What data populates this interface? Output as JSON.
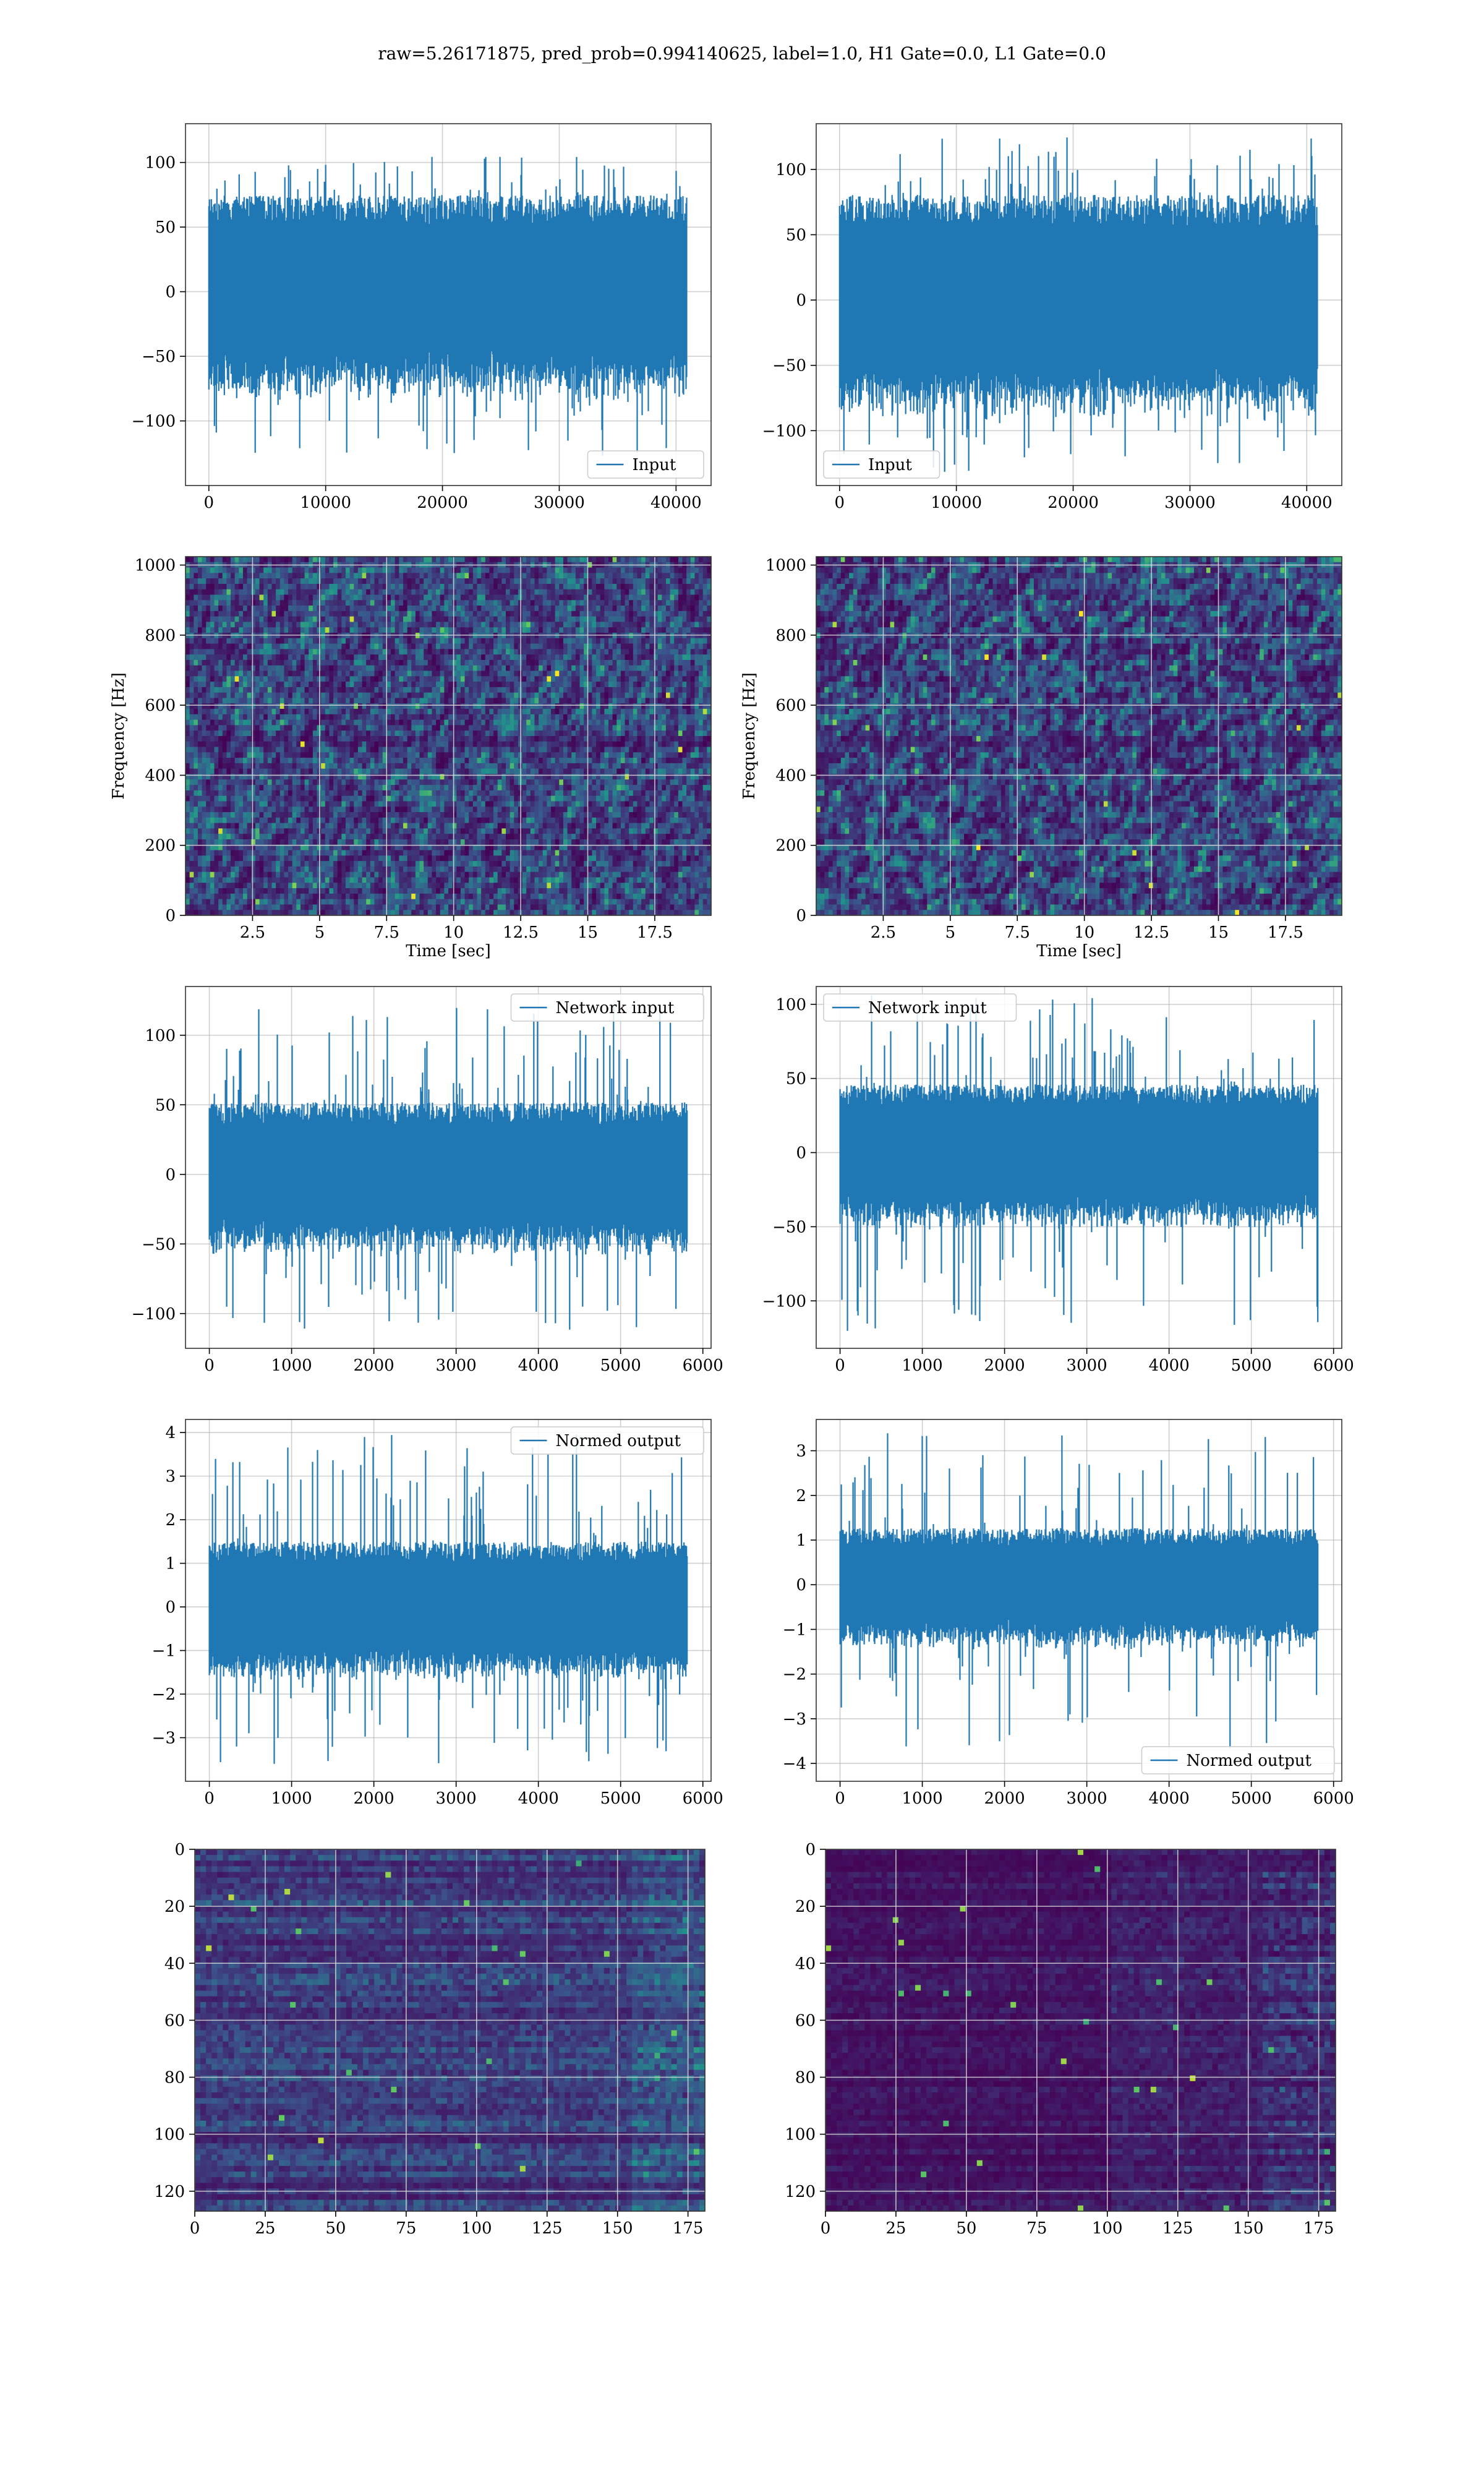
{
  "figure": {
    "title": "raw=5.26171875, pred_prob=0.994140625, label=1.0, H1 Gate=0.0, L1 Gate=0.0"
  },
  "colors": {
    "series": "#1f77b4",
    "grid": "#b0b0b0",
    "heat_low": "#440154",
    "heat_mid1": "#3b528b",
    "heat_mid2": "#21918c",
    "heat_high": "#5ec962",
    "heat_peak": "#fde725"
  },
  "chart_data": [
    {
      "id": "h1_input",
      "type": "line",
      "legend_loc": "lower right",
      "series": [
        {
          "name": "Input",
          "n_points": 40960,
          "amplitude_typical": 65,
          "min": -132,
          "max": 106
        }
      ],
      "xlim": [
        -2000,
        43000
      ],
      "ylim": [
        -150,
        130
      ],
      "xticks": [
        0,
        10000,
        20000,
        30000,
        40000
      ],
      "yticks": [
        -100,
        -50,
        0,
        50,
        100
      ],
      "xlabel": "",
      "ylabel": "",
      "grid": true
    },
    {
      "id": "l1_input",
      "type": "line",
      "legend_loc": "lower left",
      "series": [
        {
          "name": "Input",
          "n_points": 40960,
          "amplitude_typical": 70,
          "min": -132,
          "max": 125
        }
      ],
      "xlim": [
        -2000,
        43000
      ],
      "ylim": [
        -142,
        135
      ],
      "xticks": [
        0,
        10000,
        20000,
        30000,
        40000
      ],
      "yticks": [
        -100,
        -50,
        0,
        50,
        100
      ],
      "xlabel": "",
      "ylabel": "",
      "grid": true
    },
    {
      "id": "h1_spectrogram",
      "type": "heatmap",
      "xlim": [
        0,
        19.6
      ],
      "ylim": [
        0,
        1024
      ],
      "xticks": [
        2.5,
        5.0,
        7.5,
        10.0,
        12.5,
        15.0,
        17.5
      ],
      "yticks": [
        0,
        200,
        400,
        600,
        800,
        1000
      ],
      "xlabel": "Time [sec]",
      "ylabel": "Frequency [Hz]",
      "grid": true
    },
    {
      "id": "l1_spectrogram",
      "type": "heatmap",
      "xlim": [
        0,
        19.6
      ],
      "ylim": [
        0,
        1024
      ],
      "xticks": [
        2.5,
        5.0,
        7.5,
        10.0,
        12.5,
        15.0,
        17.5
      ],
      "yticks": [
        0,
        200,
        400,
        600,
        800,
        1000
      ],
      "xlabel": "Time [sec]",
      "ylabel": "Frequency [Hz]",
      "grid": true
    },
    {
      "id": "h1_network_input",
      "type": "line",
      "legend_loc": "upper right",
      "series": [
        {
          "name": "Network input",
          "n_points": 5816,
          "amplitude_typical": 45,
          "min": -112,
          "max": 122
        }
      ],
      "xlim": [
        -290,
        6100
      ],
      "ylim": [
        -125,
        135
      ],
      "xticks": [
        0,
        1000,
        2000,
        3000,
        4000,
        5000,
        6000
      ],
      "yticks": [
        -100,
        -50,
        0,
        50,
        100
      ],
      "xlabel": "",
      "ylabel": "",
      "grid": true
    },
    {
      "id": "l1_network_input",
      "type": "line",
      "legend_loc": "upper left",
      "series": [
        {
          "name": "Network input",
          "n_points": 5816,
          "amplitude_typical": 40,
          "min": -122,
          "max": 106
        }
      ],
      "xlim": [
        -290,
        6100
      ],
      "ylim": [
        -132,
        112
      ],
      "xticks": [
        0,
        1000,
        2000,
        3000,
        4000,
        5000,
        6000
      ],
      "yticks": [
        -100,
        -50,
        0,
        50,
        100
      ],
      "xlabel": "",
      "ylabel": "",
      "grid": true
    },
    {
      "id": "h1_normed_output",
      "type": "line",
      "legend_loc": "upper right",
      "series": [
        {
          "name": "Normed output",
          "n_points": 5816,
          "amplitude_typical": 1.3,
          "min": -3.6,
          "max": 4.0
        }
      ],
      "xlim": [
        -290,
        6100
      ],
      "ylim": [
        -4.0,
        4.3
      ],
      "xticks": [
        0,
        1000,
        2000,
        3000,
        4000,
        5000,
        6000
      ],
      "yticks": [
        -3,
        -2,
        -1,
        0,
        1,
        2,
        3,
        4
      ],
      "xlabel": "",
      "ylabel": "",
      "grid": true
    },
    {
      "id": "l1_normed_output",
      "type": "line",
      "legend_loc": "lower right",
      "series": [
        {
          "name": "Normed output",
          "n_points": 5816,
          "amplitude_typical": 1.1,
          "min": -3.9,
          "max": 3.4
        }
      ],
      "xlim": [
        -290,
        6100
      ],
      "ylim": [
        -4.4,
        3.7
      ],
      "xticks": [
        0,
        1000,
        2000,
        3000,
        4000,
        5000,
        6000
      ],
      "yticks": [
        -4,
        -3,
        -2,
        -1,
        0,
        1,
        2,
        3
      ],
      "xlabel": "",
      "ylabel": "",
      "grid": true
    },
    {
      "id": "h1_feature_map",
      "type": "heatmap",
      "xlim": [
        0,
        181
      ],
      "ylim": [
        127,
        0
      ],
      "rows": 128,
      "cols": 181,
      "xticks": [
        0,
        25,
        50,
        75,
        100,
        125,
        150,
        175
      ],
      "yticks": [
        0,
        20,
        40,
        60,
        80,
        100,
        120
      ],
      "xlabel": "",
      "ylabel": "",
      "grid": true
    },
    {
      "id": "l1_feature_map",
      "type": "heatmap",
      "xlim": [
        0,
        181
      ],
      "ylim": [
        127,
        0
      ],
      "rows": 128,
      "cols": 181,
      "xticks": [
        0,
        25,
        50,
        75,
        100,
        125,
        150,
        175
      ],
      "yticks": [
        0,
        20,
        40,
        60,
        80,
        100,
        120
      ],
      "xlabel": "",
      "ylabel": "",
      "grid": true
    }
  ]
}
